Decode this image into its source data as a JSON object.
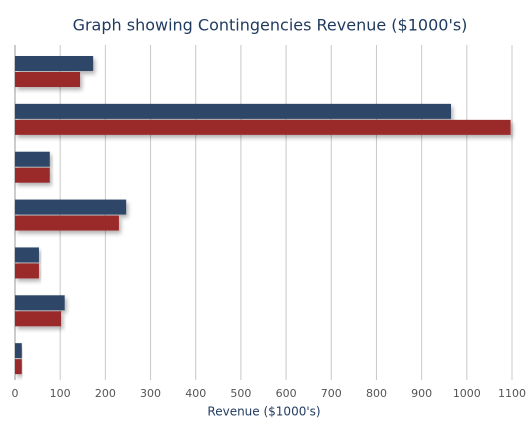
{
  "chart_data": {
    "type": "hbar",
    "title": "Graph showing Contingencies Revenue ($1000's)",
    "x_label": "Revenue ($1000's)",
    "categories": [
      null,
      null,
      null,
      null,
      null,
      null,
      null
    ],
    "series": [
      {
        "color": "#2d4668",
        "values": [
          173,
          965,
          77,
          246,
          53,
          110,
          15
        ]
      },
      {
        "color": "#9a2b2b",
        "values": [
          144,
          1097,
          77,
          230,
          53,
          102,
          15
        ]
      }
    ],
    "xlim": [
      0,
      1100
    ],
    "xticks": [
      0,
      100,
      200,
      300,
      400,
      500,
      600,
      700,
      800,
      900,
      1000,
      1100
    ],
    "grid": true
  }
}
